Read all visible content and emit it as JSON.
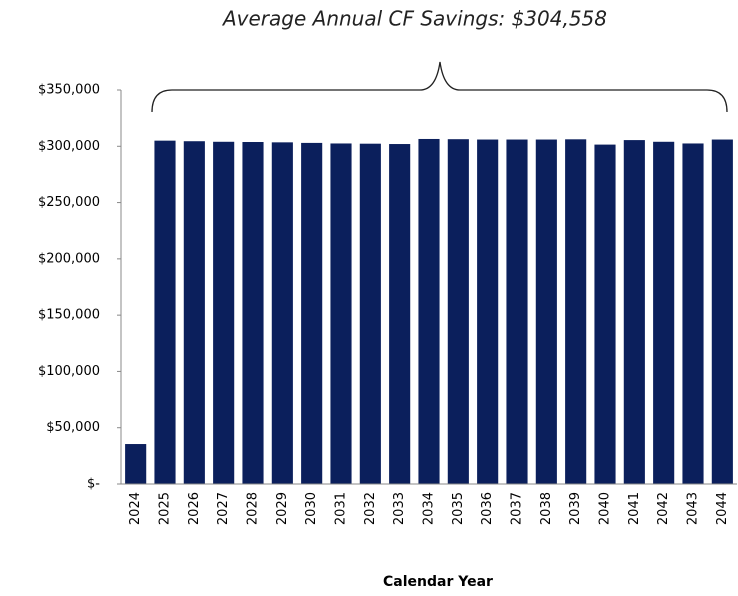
{
  "chart_data": {
    "type": "bar",
    "title": "Average Annual CF Savings: $304,558",
    "x_label": "Calendar Year",
    "categories": [
      "2024",
      "2025",
      "2026",
      "2027",
      "2028",
      "2029",
      "2030",
      "2031",
      "2032",
      "2033",
      "2034",
      "2035",
      "2036",
      "2037",
      "2038",
      "2039",
      "2040",
      "2041",
      "2042",
      "2043",
      "2044"
    ],
    "values": [
      35500,
      305000,
      304500,
      304000,
      303800,
      303500,
      303000,
      302500,
      302300,
      302000,
      306500,
      306300,
      306000,
      306000,
      306000,
      306200,
      301500,
      305500,
      304000,
      302500,
      306000
    ],
    "color": "#0b1f5c",
    "ylim": [
      0,
      350000
    ],
    "yticks": [
      {
        "value": 0,
        "label": "$-"
      },
      {
        "value": 50000,
        "label": "$50,000"
      },
      {
        "value": 100000,
        "label": "$100,000"
      },
      {
        "value": 150000,
        "label": "$150,000"
      },
      {
        "value": 200000,
        "label": "$200,000"
      },
      {
        "value": 250000,
        "label": "$250,000"
      },
      {
        "value": 300000,
        "label": "$300,000"
      },
      {
        "value": 350000,
        "label": "$350,000"
      }
    ],
    "grid": false
  }
}
